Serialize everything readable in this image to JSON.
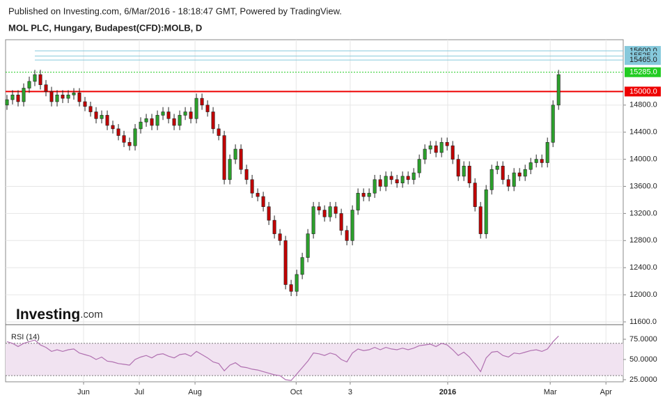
{
  "header": {
    "published": "Published on Investing.com, 6/Mar/2016 - 18:18:47 GMT, Powered by TradingView.",
    "symbol": "MOL PLC, Hungary, Budapest(CFD):MOLB, D"
  },
  "chart_data": {
    "type": "candlestick",
    "logo": {
      "brand": "Investing",
      "suffix": ".com"
    },
    "up_color": "#2ca02c",
    "down_color": "#c00000",
    "candles": [
      [
        14800,
        14950,
        14730,
        14880
      ],
      [
        14880,
        15020,
        14810,
        14950
      ],
      [
        14950,
        15020,
        14780,
        14850
      ],
      [
        14850,
        15120,
        14780,
        15050
      ],
      [
        15050,
        15220,
        14980,
        15150
      ],
      [
        15150,
        15320,
        15080,
        15250
      ],
      [
        15250,
        15320,
        15030,
        15100
      ],
      [
        15100,
        15170,
        14930,
        15000
      ],
      [
        15000,
        15070,
        14780,
        14850
      ],
      [
        14850,
        15020,
        14780,
        14950
      ],
      [
        14950,
        15020,
        14830,
        14900
      ],
      [
        14900,
        15020,
        14830,
        14950
      ],
      [
        14950,
        15050,
        14880,
        14980
      ],
      [
        14980,
        15050,
        14780,
        14850
      ],
      [
        14850,
        14920,
        14710,
        14780
      ],
      [
        14780,
        14850,
        14630,
        14700
      ],
      [
        14700,
        14770,
        14530,
        14600
      ],
      [
        14600,
        14720,
        14530,
        14650
      ],
      [
        14650,
        14720,
        14430,
        14500
      ],
      [
        14500,
        14570,
        14380,
        14450
      ],
      [
        14450,
        14520,
        14280,
        14350
      ],
      [
        14350,
        14420,
        14180,
        14250
      ],
      [
        14250,
        14320,
        14130,
        14200
      ],
      [
        14200,
        14520,
        14130,
        14450
      ],
      [
        14450,
        14620,
        14380,
        14550
      ],
      [
        14550,
        14670,
        14480,
        14600
      ],
      [
        14600,
        14670,
        14430,
        14500
      ],
      [
        14500,
        14720,
        14430,
        14650
      ],
      [
        14650,
        14770,
        14580,
        14700
      ],
      [
        14700,
        14770,
        14530,
        14600
      ],
      [
        14600,
        14670,
        14430,
        14500
      ],
      [
        14500,
        14720,
        14430,
        14650
      ],
      [
        14650,
        14770,
        14580,
        14700
      ],
      [
        14700,
        14770,
        14530,
        14600
      ],
      [
        14600,
        14970,
        14530,
        14900
      ],
      [
        14900,
        14970,
        14730,
        14800
      ],
      [
        14800,
        14870,
        14630,
        14700
      ],
      [
        14700,
        14770,
        14380,
        14450
      ],
      [
        14450,
        14520,
        14280,
        14350
      ],
      [
        14350,
        14420,
        13630,
        13700
      ],
      [
        13700,
        14070,
        13630,
        14000
      ],
      [
        14000,
        14220,
        13930,
        14150
      ],
      [
        14150,
        14220,
        13780,
        13850
      ],
      [
        13850,
        13920,
        13630,
        13700
      ],
      [
        13700,
        13770,
        13430,
        13500
      ],
      [
        13500,
        13570,
        13380,
        13450
      ],
      [
        13450,
        13520,
        13230,
        13300
      ],
      [
        13300,
        13370,
        13030,
        13100
      ],
      [
        13100,
        13170,
        12830,
        12900
      ],
      [
        12900,
        12970,
        12730,
        12800
      ],
      [
        12800,
        12870,
        12080,
        12150
      ],
      [
        12150,
        12220,
        11980,
        12050
      ],
      [
        12050,
        12370,
        11980,
        12300
      ],
      [
        12300,
        12620,
        12230,
        12550
      ],
      [
        12550,
        12970,
        12480,
        12900
      ],
      [
        12900,
        13370,
        12830,
        13300
      ],
      [
        13300,
        13370,
        13180,
        13250
      ],
      [
        13250,
        13320,
        13080,
        13150
      ],
      [
        13150,
        13370,
        13080,
        13300
      ],
      [
        13300,
        13370,
        13130,
        13200
      ],
      [
        13200,
        13270,
        12880,
        12950
      ],
      [
        12950,
        13020,
        12730,
        12800
      ],
      [
        12800,
        13320,
        12730,
        13250
      ],
      [
        13250,
        13570,
        13180,
        13500
      ],
      [
        13500,
        13570,
        13380,
        13450
      ],
      [
        13450,
        13570,
        13380,
        13500
      ],
      [
        13500,
        13770,
        13430,
        13700
      ],
      [
        13700,
        13770,
        13530,
        13600
      ],
      [
        13600,
        13820,
        13530,
        13750
      ],
      [
        13750,
        13820,
        13630,
        13700
      ],
      [
        13700,
        13770,
        13580,
        13650
      ],
      [
        13650,
        13820,
        13580,
        13750
      ],
      [
        13750,
        13820,
        13630,
        13700
      ],
      [
        13700,
        13870,
        13630,
        13800
      ],
      [
        13800,
        14070,
        13730,
        14000
      ],
      [
        14000,
        14220,
        13930,
        14150
      ],
      [
        14150,
        14270,
        14080,
        14200
      ],
      [
        14200,
        14270,
        14030,
        14100
      ],
      [
        14100,
        14320,
        14030,
        14250
      ],
      [
        14250,
        14320,
        14130,
        14200
      ],
      [
        14200,
        14270,
        13930,
        14000
      ],
      [
        14000,
        14070,
        13680,
        13750
      ],
      [
        13750,
        13970,
        13680,
        13900
      ],
      [
        13900,
        13970,
        13580,
        13650
      ],
      [
        13650,
        13720,
        13230,
        13300
      ],
      [
        13300,
        13370,
        12830,
        12900
      ],
      [
        12900,
        13620,
        12830,
        13550
      ],
      [
        13550,
        13920,
        13480,
        13850
      ],
      [
        13850,
        13970,
        13780,
        13900
      ],
      [
        13900,
        13970,
        13630,
        13700
      ],
      [
        13700,
        13770,
        13530,
        13600
      ],
      [
        13600,
        13870,
        13530,
        13800
      ],
      [
        13800,
        13870,
        13680,
        13750
      ],
      [
        13750,
        13920,
        13680,
        13850
      ],
      [
        13850,
        14020,
        13780,
        13950
      ],
      [
        13950,
        14070,
        13880,
        14000
      ],
      [
        14000,
        14070,
        13880,
        13950
      ],
      [
        13950,
        14320,
        13880,
        14250
      ],
      [
        14250,
        14870,
        14180,
        14800
      ],
      [
        14800,
        15320,
        14730,
        15250
      ]
    ],
    "xlim": [
      -0.25,
      110.6
    ],
    "xticks": [
      {
        "value": 13.75,
        "label": "Jun"
      },
      {
        "value": 23.75,
        "label": "Jul"
      },
      {
        "value": 33.75,
        "label": "Aug"
      },
      {
        "value": 51.9,
        "label": "Oct"
      },
      {
        "value": 61.6,
        "label": "3"
      },
      {
        "value": 79.1,
        "label": "2016"
      },
      {
        "value": 97.5,
        "label": "Mar"
      },
      {
        "value": 107.5,
        "label": "Apr"
      }
    ],
    "ylim": [
      11569,
      15765
    ],
    "yticks": [
      {
        "value": 11600,
        "label": "11600.0"
      },
      {
        "value": 12000,
        "label": "12000.0"
      },
      {
        "value": 12400,
        "label": "12400.0"
      },
      {
        "value": 12800,
        "label": "12800.0"
      },
      {
        "value": 13200,
        "label": "13200.0"
      },
      {
        "value": 13600,
        "label": "13600.0"
      },
      {
        "value": 14000,
        "label": "14000.0"
      },
      {
        "value": 14400,
        "label": "14400.0"
      },
      {
        "value": 14800,
        "label": "14800.0"
      }
    ],
    "levels": [
      {
        "value": 15600,
        "label": "15600.0",
        "color": "#86c9dc"
      },
      {
        "value": 15525,
        "label": "15525.0",
        "color": "#86c9dc"
      },
      {
        "value": 15465,
        "label": "15465.0",
        "color": "#86c9dc"
      },
      {
        "value": 15285,
        "label": "15285.0",
        "color": "#22cc22"
      },
      {
        "value": 15000,
        "label": "15000.0",
        "color": "#ee0000"
      }
    ],
    "grid": true,
    "rsi": {
      "title": "RSI (14)",
      "color": "#b070b0",
      "band": [
        30,
        70
      ],
      "values": [
        72,
        70,
        66,
        70,
        72,
        74,
        68,
        65,
        60,
        62,
        60,
        62,
        63,
        58,
        56,
        54,
        50,
        53,
        48,
        47,
        45,
        44,
        43,
        50,
        53,
        55,
        52,
        56,
        57,
        54,
        52,
        56,
        57,
        54,
        60,
        56,
        52,
        47,
        45,
        36,
        43,
        46,
        41,
        40,
        38,
        37,
        35,
        33,
        31,
        30,
        25,
        24,
        32,
        40,
        48,
        58,
        57,
        55,
        58,
        56,
        50,
        47,
        58,
        63,
        61,
        62,
        65,
        62,
        65,
        63,
        62,
        64,
        62,
        64,
        67,
        68,
        69,
        66,
        70,
        68,
        62,
        55,
        59,
        53,
        44,
        35,
        52,
        59,
        60,
        55,
        53,
        58,
        57,
        59,
        61,
        62,
        60,
        63,
        72,
        79
      ],
      "ylim": [
        22.4,
        92.2
      ],
      "yticks": [
        {
          "value": 75,
          "label": "75.0000"
        },
        {
          "value": 50,
          "label": "50.0000"
        },
        {
          "value": 25,
          "label": "25.0000"
        }
      ]
    }
  }
}
